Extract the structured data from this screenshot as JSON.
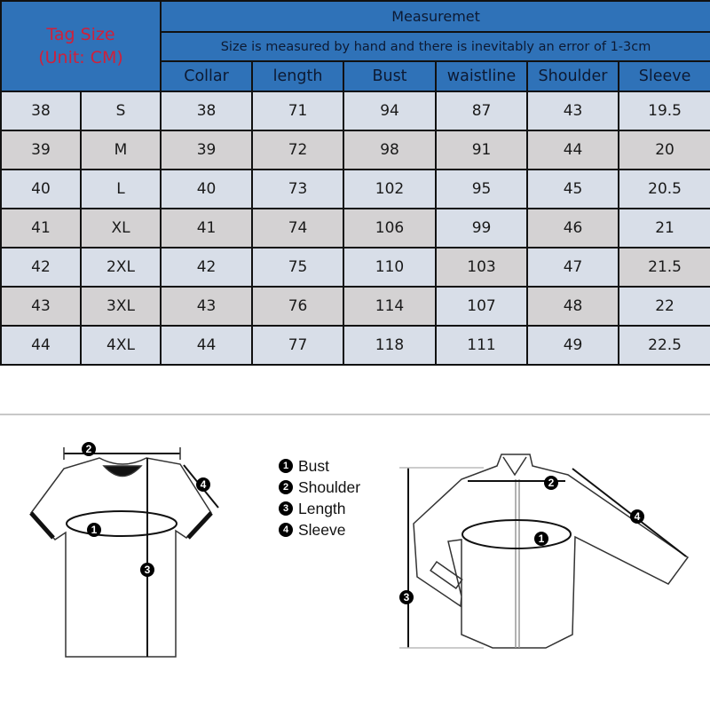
{
  "header": {
    "tag_size": "Tag Size",
    "unit": "(Unit: CM)",
    "measurement_title": "Measuremet",
    "note": "Size is measured by hand and there is inevitably an error of 1-3cm",
    "columns": [
      "Collar",
      "length",
      "Bust",
      "waistline",
      "Shoulder",
      "Sleeve"
    ]
  },
  "colors": {
    "header_bg": "#2f72b8",
    "tag_text": "#d0203a",
    "cell_light": "#d8dee8",
    "cell_gray": "#d4d2d3"
  },
  "rows": [
    {
      "cells": [
        "38",
        "S",
        "38",
        "71",
        "94",
        "87",
        "43",
        "19.5"
      ],
      "gray": []
    },
    {
      "cells": [
        "39",
        "M",
        "39",
        "72",
        "98",
        "91",
        "44",
        "20"
      ],
      "gray": [
        0,
        1,
        2,
        3,
        4,
        5,
        6,
        7
      ]
    },
    {
      "cells": [
        "40",
        "L",
        "40",
        "73",
        "102",
        "95",
        "45",
        "20.5"
      ],
      "gray": []
    },
    {
      "cells": [
        "41",
        "XL",
        "41",
        "74",
        "106",
        "99",
        "46",
        "21"
      ],
      "gray": [
        0,
        1,
        2,
        3,
        4,
        6
      ]
    },
    {
      "cells": [
        "42",
        "2XL",
        "42",
        "75",
        "110",
        "103",
        "47",
        "21.5"
      ],
      "gray": [
        5,
        7
      ]
    },
    {
      "cells": [
        "43",
        "3XL",
        "43",
        "76",
        "114",
        "107",
        "48",
        "22"
      ],
      "gray": [
        0,
        1,
        2,
        3,
        4,
        6
      ]
    },
    {
      "cells": [
        "44",
        "4XL",
        "44",
        "77",
        "118",
        "111",
        "49",
        "22.5"
      ],
      "gray": []
    }
  ],
  "legend": [
    {
      "num": "1",
      "label": "Bust"
    },
    {
      "num": "2",
      "label": "Shoulder"
    },
    {
      "num": "3",
      "label": "Length"
    },
    {
      "num": "4",
      "label": "Sleeve"
    }
  ]
}
